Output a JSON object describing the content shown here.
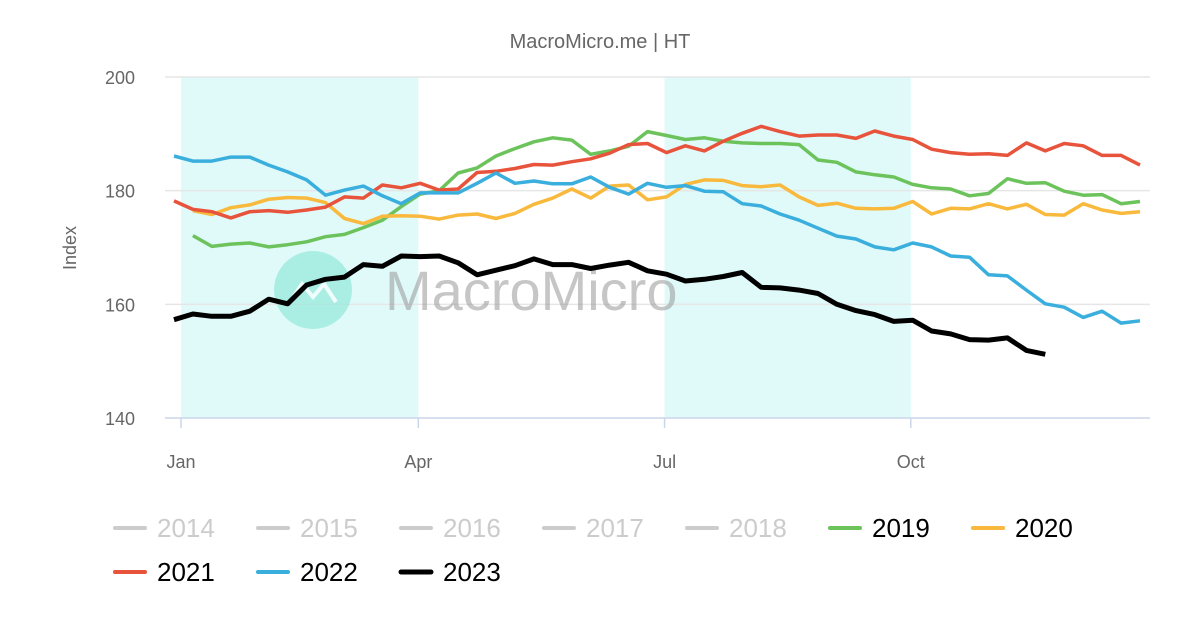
{
  "chart_data": {
    "type": "line",
    "title": "MacroMicro.me | HT",
    "ylabel": "Index",
    "xlabel": "",
    "ylim": [
      140,
      200
    ],
    "yticks": [
      140,
      160,
      180,
      200
    ],
    "xlim_weeks": [
      1,
      52
    ],
    "xticks": [
      {
        "label": "Jan",
        "week": 1.37
      },
      {
        "label": "Apr",
        "week": 13.9
      },
      {
        "label": "Jul",
        "week": 26.9
      },
      {
        "label": "Oct",
        "week": 39.9
      }
    ],
    "shaded_quarters": [
      [
        "Jan",
        "Apr"
      ],
      [
        "Jul",
        "Oct"
      ]
    ],
    "grid": true,
    "legend_position": "bottom",
    "watermark": "MacroMicro",
    "colors": {
      "shade": "#e0fafa",
      "grid": "#e6e6e6"
    },
    "series": [
      {
        "name": "2014",
        "color": "#cccccc",
        "hidden": true,
        "start_week": 1,
        "values": []
      },
      {
        "name": "2015",
        "color": "#cccccc",
        "hidden": true,
        "start_week": 1,
        "values": []
      },
      {
        "name": "2016",
        "color": "#cccccc",
        "hidden": true,
        "start_week": 1,
        "values": []
      },
      {
        "name": "2017",
        "color": "#cccccc",
        "hidden": true,
        "start_week": 1,
        "values": []
      },
      {
        "name": "2018",
        "color": "#cccccc",
        "hidden": true,
        "start_week": 1,
        "values": []
      },
      {
        "name": "2019",
        "color": "#6cc35c",
        "hidden": false,
        "start_week": 2,
        "values": [
          172.1,
          170.2,
          170.6,
          170.8,
          170.1,
          170.5,
          171.0,
          171.9,
          172.3,
          173.5,
          174.8,
          177.2,
          179.4,
          180.0,
          183.1,
          184.0,
          186.1,
          187.4,
          188.6,
          189.3,
          188.9,
          186.4,
          187.0,
          187.8,
          190.4,
          189.7,
          189.0,
          189.3,
          188.7,
          188.4,
          188.3,
          188.3,
          188.1,
          185.4,
          185.0,
          183.3,
          182.8,
          182.4,
          181.1,
          180.5,
          180.3,
          179.1,
          179.5,
          182.1,
          181.3,
          181.4,
          179.9,
          179.2,
          179.3,
          177.7,
          178.1
        ]
      },
      {
        "name": "2020",
        "color": "#f8b93c",
        "hidden": false,
        "start_week": 2,
        "values": [
          176.5,
          175.8,
          177.0,
          177.5,
          178.5,
          178.8,
          178.7,
          177.9,
          175.1,
          174.2,
          175.5,
          175.6,
          175.5,
          175.0,
          175.7,
          175.9,
          175.1,
          176.0,
          177.6,
          178.7,
          180.3,
          178.7,
          180.8,
          181.0,
          178.4,
          178.9,
          181.1,
          181.9,
          181.8,
          180.9,
          180.7,
          181.0,
          178.9,
          177.4,
          177.8,
          176.9,
          176.8,
          176.9,
          178.1,
          175.9,
          176.9,
          176.8,
          177.7,
          176.8,
          177.6,
          175.8,
          175.7,
          177.7,
          176.6,
          176.0,
          176.3
        ]
      },
      {
        "name": "2021",
        "color": "#e8533c",
        "hidden": false,
        "start_week": 1,
        "values": [
          178.2,
          176.7,
          176.3,
          175.2,
          176.3,
          176.5,
          176.2,
          176.6,
          177.1,
          178.9,
          178.7,
          181.0,
          180.5,
          181.3,
          180.1,
          180.3,
          183.2,
          183.4,
          183.9,
          184.6,
          184.5,
          185.1,
          185.6,
          186.6,
          188.1,
          188.3,
          186.7,
          187.9,
          187.0,
          188.7,
          190.1,
          191.3,
          190.4,
          189.6,
          189.8,
          189.8,
          189.2,
          190.5,
          189.6,
          189.0,
          187.3,
          186.7,
          186.4,
          186.5,
          186.2,
          188.4,
          187.0,
          188.3,
          187.9,
          186.2,
          186.2,
          184.5
        ]
      },
      {
        "name": "2022",
        "color": "#3aaedc",
        "hidden": false,
        "start_week": 1,
        "values": [
          186.1,
          185.2,
          185.2,
          185.9,
          185.9,
          184.5,
          183.3,
          181.9,
          179.2,
          180.1,
          180.8,
          179.1,
          177.7,
          179.6,
          179.6,
          179.6,
          181.3,
          183.1,
          181.3,
          181.7,
          181.2,
          181.2,
          182.4,
          180.6,
          179.4,
          181.3,
          180.6,
          180.9,
          179.9,
          179.8,
          177.7,
          177.3,
          175.9,
          174.8,
          173.4,
          172.0,
          171.5,
          170.1,
          169.6,
          170.8,
          170.1,
          168.5,
          168.3,
          165.2,
          165.0,
          162.5,
          160.1,
          159.5,
          157.7,
          158.8,
          156.7,
          157.1
        ]
      },
      {
        "name": "2023",
        "color": "#000000",
        "hidden": false,
        "start_week": 1,
        "values": [
          157.3,
          158.3,
          157.9,
          157.9,
          158.8,
          160.9,
          160.1,
          163.4,
          164.4,
          164.8,
          167.0,
          166.7,
          168.5,
          168.4,
          168.5,
          167.3,
          165.2,
          166.0,
          166.8,
          168.0,
          167.0,
          167.0,
          166.3,
          166.9,
          167.4,
          165.9,
          165.3,
          164.1,
          164.4,
          164.9,
          165.6,
          163.0,
          162.9,
          162.5,
          161.9,
          160.0,
          158.9,
          158.2,
          157.0,
          157.2,
          155.3,
          154.8,
          153.8,
          153.7,
          154.1,
          151.9,
          151.2
        ]
      }
    ]
  }
}
